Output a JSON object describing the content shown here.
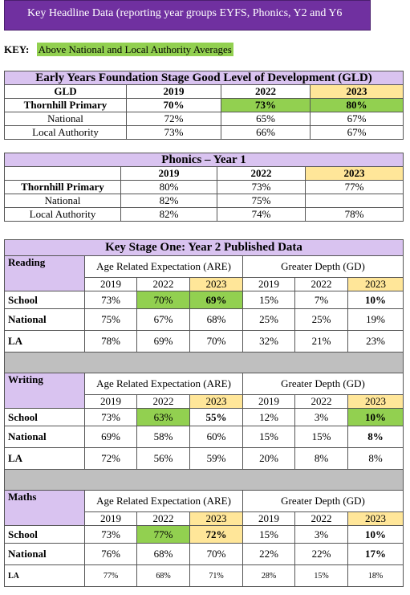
{
  "header": {
    "title": "Key Headline Data (reporting year groups EYFS, Phonics, Y2 and Y6"
  },
  "key": {
    "label": "KEY:",
    "text": "Above National and Local Authority Averages"
  },
  "eyfs": {
    "title": "Early Years Foundation Stage Good Level of Development (GLD)",
    "columns": [
      "GLD",
      "2019",
      "2022",
      "2023"
    ],
    "rows": [
      [
        "Thornhill Primary",
        "70%",
        "73%",
        "80%"
      ],
      [
        "National",
        "72%",
        "65%",
        "67%"
      ],
      [
        "Local Authority",
        "73%",
        "66%",
        "67%"
      ]
    ]
  },
  "phonics": {
    "title": "Phonics – Year 1",
    "columns": [
      "2019",
      "2022",
      "2023"
    ],
    "rows": [
      [
        "Thornhill Primary",
        "80%",
        "73%",
        "77%"
      ],
      [
        "National",
        "82%",
        "75%",
        null
      ],
      [
        "Local Authority",
        "82%",
        "74%",
        "78%"
      ]
    ]
  },
  "ks1": {
    "title": "Key Stage One: Year 2 Published Data",
    "sections": [
      {
        "subject": "Reading",
        "groups": [
          "Age Related Expectation (ARE)",
          "Greater Depth (GD)"
        ],
        "years": [
          "2019",
          "2022",
          "2023",
          "2019",
          "2022",
          "2023"
        ],
        "rows": [
          [
            "School",
            "73%",
            "70%",
            "69%",
            "15%",
            "7%",
            "10%"
          ],
          [
            "National",
            "75%",
            "67%",
            "68%",
            "25%",
            "25%",
            "19%"
          ],
          [
            "LA",
            "78%",
            "69%",
            "70%",
            "32%",
            "21%",
            "23%"
          ]
        ]
      },
      {
        "subject": "Writing",
        "groups": [
          "Age Related Expectation (ARE)",
          "Greater Depth (GD)"
        ],
        "years": [
          "2019",
          "2022",
          "2023",
          "2019",
          "2022",
          "2023"
        ],
        "rows": [
          [
            "School",
            "73%",
            "63%",
            "55%",
            "12%",
            "3%",
            "10%"
          ],
          [
            "National",
            "69%",
            "58%",
            "60%",
            "15%",
            "15%",
            "8%"
          ],
          [
            "LA",
            "72%",
            "56%",
            "59%",
            "20%",
            "8%",
            "8%"
          ]
        ]
      },
      {
        "subject": "Maths",
        "groups": [
          "Age Related Expectation (ARE)",
          "Greater Depth (GD)"
        ],
        "years": [
          "2019",
          "2022",
          "2023",
          "2019",
          "2022",
          "2023"
        ],
        "rows": [
          [
            "School",
            "73%",
            "77%",
            "72%",
            "15%",
            "3%",
            "10%"
          ],
          [
            "National",
            "76%",
            "68%",
            "70%",
            "22%",
            "22%",
            "17%"
          ],
          [
            "LA",
            "77%",
            "68%",
            "71%",
            "28%",
            "15%",
            "18%"
          ]
        ]
      }
    ]
  }
}
